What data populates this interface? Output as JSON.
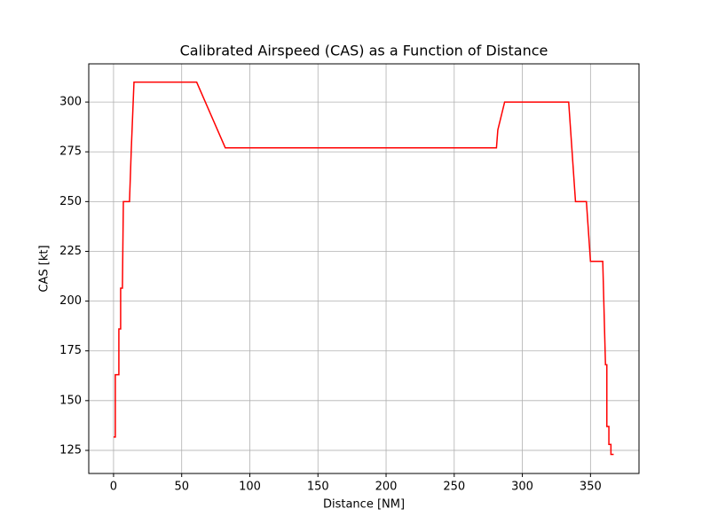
{
  "chart_data": {
    "type": "line",
    "title": "Calibrated Airspeed (CAS) as a Function of Distance",
    "xlabel": "Distance [NM]",
    "ylabel": "CAS [kt]",
    "xlim": [
      -18.2,
      385.6
    ],
    "ylim": [
      113.4,
      319.2
    ],
    "xticks": [
      0,
      50,
      100,
      150,
      200,
      250,
      300,
      350
    ],
    "yticks": [
      125,
      150,
      175,
      200,
      225,
      250,
      275,
      300
    ],
    "grid": true,
    "series": [
      {
        "color": "#ff0000",
        "x": [
          0,
          1.3,
          1.3,
          3.9,
          3.9,
          5.2,
          5.2,
          6.5,
          7.2,
          11.7,
          13,
          15,
          61,
          82,
          281,
          282,
          287,
          334,
          339,
          347,
          350,
          359,
          361,
          362,
          362,
          363.5,
          363.5,
          365,
          365,
          367
        ],
        "values": [
          131.7,
          131.7,
          163,
          163,
          186,
          186,
          206.5,
          206.5,
          250,
          250,
          276,
          310,
          310,
          277,
          277,
          286,
          300,
          300,
          250,
          250,
          220,
          220,
          168,
          168,
          137,
          137,
          128,
          128,
          123,
          123
        ]
      }
    ]
  }
}
